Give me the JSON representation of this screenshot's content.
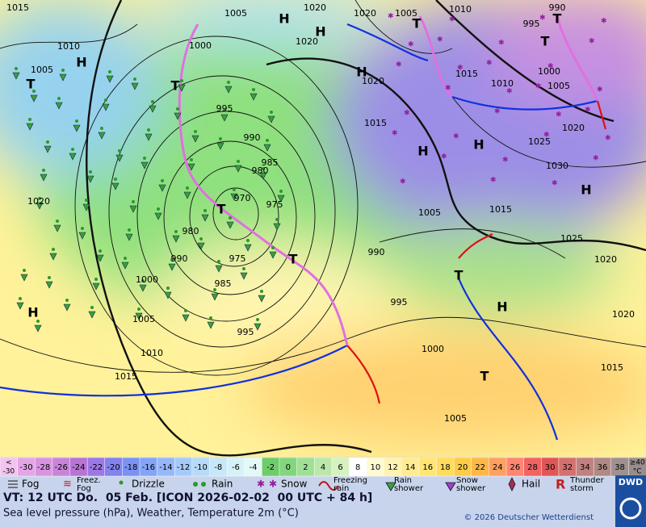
{
  "map": {
    "isobar_labels": [
      1015,
      1005,
      1020,
      1020,
      1005,
      1010,
      995,
      990,
      1010,
      1000,
      1020,
      1005,
      1020,
      1015,
      1010,
      1000,
      1005,
      995,
      1015,
      1020,
      990,
      1025,
      985,
      980,
      1030,
      1020,
      970,
      975,
      1005,
      1015,
      980,
      1025,
      990,
      975,
      990,
      1020,
      985,
      1000,
      995,
      1020,
      1005,
      995,
      1010,
      1000,
      1015,
      1015,
      1005
    ],
    "centers": [
      "H",
      "H",
      "H",
      "H",
      "H",
      "H",
      "H",
      "H",
      "H",
      "T",
      "T",
      "T",
      "T",
      "T",
      "T",
      "T",
      "T",
      "T"
    ]
  },
  "scale": {
    "below_label": [
      "<",
      "-30"
    ],
    "ticks": [
      -30,
      -28,
      -26,
      -24,
      -22,
      -20,
      -18,
      -16,
      -14,
      -12,
      -10,
      -8,
      -6,
      -4,
      -2,
      0,
      2,
      4,
      6,
      8,
      10,
      12,
      14,
      16,
      18,
      20,
      22,
      24,
      26,
      28,
      30,
      32,
      34,
      36,
      38
    ],
    "above_label": [
      "≥40",
      "°C"
    ],
    "colors": [
      "#f2c4ee",
      "#e4a6e6",
      "#d894e0",
      "#c984d9",
      "#b774d2",
      "#9c78e4",
      "#8482ec",
      "#7a92f2",
      "#86a4f6",
      "#96b8f8",
      "#a6caf8",
      "#b6daf8",
      "#c6e8f8",
      "#d6f2f8",
      "#e4f8f6",
      "#6fcc6a",
      "#84d67e",
      "#a0e096",
      "#bbe8aa",
      "#d6f2c0",
      "#ffffff",
      "#fffad2",
      "#fff2b2",
      "#ffec92",
      "#ffe674",
      "#ffdc5c",
      "#ffcc48",
      "#ffb848",
      "#ffa060",
      "#ff8672",
      "#f06462",
      "#e05656",
      "#d47070",
      "#c28080",
      "#b08a84",
      "#a09090",
      "#988c8c"
    ]
  },
  "legend": [
    {
      "lines": [
        "Fog"
      ]
    },
    {
      "lines": [
        "Freez.",
        "Fog"
      ]
    },
    {
      "lines": [
        "Drizzle"
      ]
    },
    {
      "lines": [
        "Rain"
      ]
    },
    {
      "lines": [
        "Snow"
      ]
    },
    {
      "lines": [
        "Freezing",
        "rain"
      ]
    },
    {
      "lines": [
        "Rain",
        "shower"
      ]
    },
    {
      "lines": [
        "Snow",
        "shower"
      ]
    },
    {
      "lines": [
        "Hail"
      ]
    },
    {
      "lines": [
        "Thunder",
        "storm"
      ]
    }
  ],
  "footer": {
    "valid_time": "VT: 12 UTC Do.  05 Feb. [ICON 2026-02-02  00 UTC + 84 h]",
    "subtitle": "Sea level pressure (hPa), Weather, Temperature 2m (°C)",
    "copyright": "© 2026 Deutscher Wetterdienst",
    "logo": "DWD"
  }
}
